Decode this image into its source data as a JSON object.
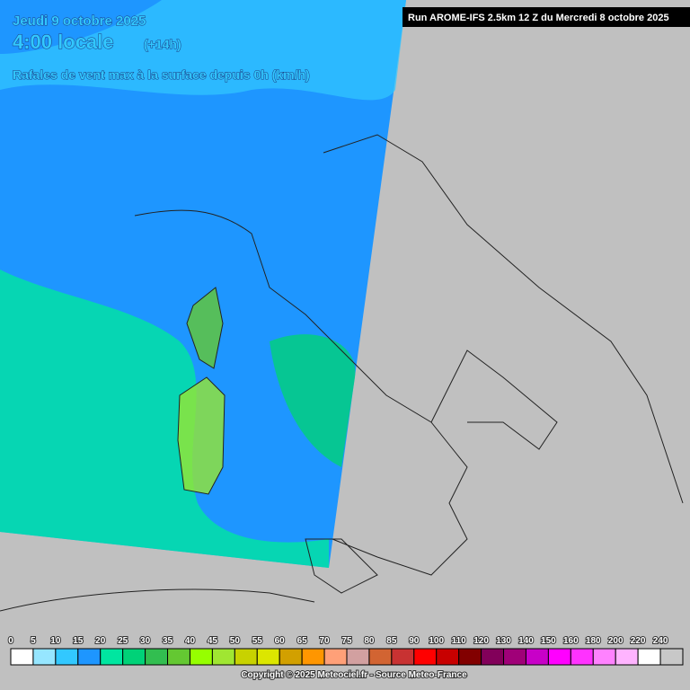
{
  "header": {
    "date": "Jeudi 9 octobre 2025",
    "time": "4:00 locale",
    "offset": "(+14h)",
    "subtitle": "Rafales de vent max à la surface depuis 0h (km/h)",
    "run": "Run AROME-IFS 2.5km 12 Z du Mercredi 8 octobre 2025"
  },
  "legend": {
    "values": [
      0,
      5,
      10,
      15,
      20,
      25,
      30,
      35,
      40,
      45,
      50,
      55,
      60,
      65,
      70,
      75,
      80,
      85,
      90,
      100,
      110,
      120,
      130,
      140,
      150,
      160,
      180,
      200,
      220,
      240
    ],
    "colors": [
      "#ffffff",
      "#96e6ff",
      "#32c8ff",
      "#1e96ff",
      "#00e6a0",
      "#00d278",
      "#32be50",
      "#64c832",
      "#96ff00",
      "#a0e632",
      "#c8d200",
      "#dce600",
      "#d2a000",
      "#ff9600",
      "#ffa078",
      "#d2a0a0",
      "#d26432",
      "#c83232",
      "#ff0000",
      "#c80000",
      "#820000",
      "#82005a",
      "#a00078",
      "#c800c8",
      "#ff00ff",
      "#ff32ff",
      "#ff82ff",
      "#ffb4ff",
      "#ffffff",
      "#c8c8c8"
    ]
  },
  "footer": "Copyright © 2025 Meteociel.fr - Source Meteo-France"
}
